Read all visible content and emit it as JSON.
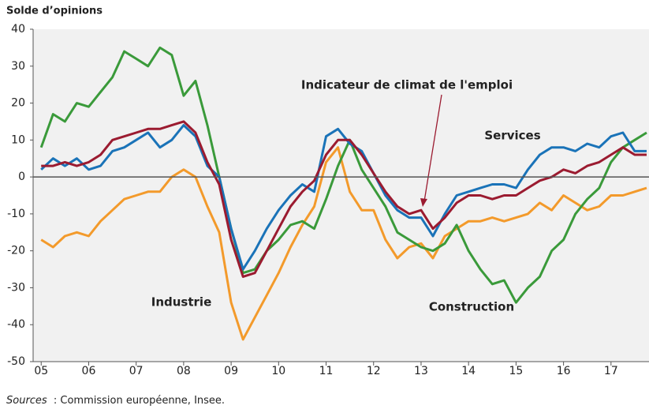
{
  "chart_data": {
    "type": "line",
    "ylabel": "Solde d’opinions",
    "source_label": "Sources",
    "source_text": ": Commission européenne, Insee.",
    "xlim": [
      2004.83,
      2017.8
    ],
    "ylim": [
      -50,
      40
    ],
    "xticks": [
      {
        "value": 2005,
        "label": "05"
      },
      {
        "value": 2006,
        "label": "06"
      },
      {
        "value": 2007,
        "label": "07"
      },
      {
        "value": 2008,
        "label": "08"
      },
      {
        "value": 2009,
        "label": "09"
      },
      {
        "value": 2010,
        "label": "10"
      },
      {
        "value": 2011,
        "label": "11"
      },
      {
        "value": 2012,
        "label": "12"
      },
      {
        "value": 2013,
        "label": "13"
      },
      {
        "value": 2014,
        "label": "14"
      },
      {
        "value": 2015,
        "label": "15"
      },
      {
        "value": 2016,
        "label": "16"
      },
      {
        "value": 2017,
        "label": "17"
      }
    ],
    "yticks": [
      40,
      30,
      20,
      10,
      0,
      -10,
      -20,
      -30,
      -40,
      -50
    ],
    "x": [
      2005,
      2005.25,
      2005.5,
      2005.75,
      2006,
      2006.25,
      2006.5,
      2006.75,
      2007,
      2007.25,
      2007.5,
      2007.75,
      2008,
      2008.25,
      2008.5,
      2008.75,
      2009,
      2009.25,
      2009.5,
      2009.75,
      2010,
      2010.25,
      2010.5,
      2010.75,
      2011,
      2011.25,
      2011.5,
      2011.75,
      2012,
      2012.25,
      2012.5,
      2012.75,
      2013,
      2013.25,
      2013.5,
      2013.75,
      2014,
      2014.25,
      2014.5,
      2014.75,
      2015,
      2015.25,
      2015.5,
      2015.75,
      2016,
      2016.25,
      2016.5,
      2016.75,
      2017,
      2017.25,
      2017.5,
      2017.75
    ],
    "series": [
      {
        "name": "Industrie",
        "color": "#f39a2b",
        "values": [
          -17,
          -19,
          -16,
          -15,
          -16,
          -12,
          -9,
          -6,
          -5,
          -4,
          -4,
          0,
          2,
          0,
          -8,
          -15,
          -34,
          -44,
          -38,
          -32,
          -26,
          -19,
          -13,
          -8,
          4,
          8,
          -4,
          -9,
          -9,
          -17,
          -22,
          -19,
          -18,
          -22,
          -16,
          -14,
          -12,
          -12,
          -11,
          -12,
          -11,
          -10,
          -7,
          -9,
          -5,
          -7,
          -9,
          -8,
          -5,
          -5,
          -4,
          -3
        ]
      },
      {
        "name": "Construction",
        "color": "#3a9a3a",
        "values": [
          8,
          17,
          15,
          20,
          19,
          23,
          27,
          34,
          32,
          30,
          35,
          33,
          22,
          26,
          14,
          0,
          -14,
          -26,
          -25,
          -20,
          -17,
          -13,
          -12,
          -14,
          -6,
          3,
          10,
          2,
          -3,
          -8,
          -15,
          -17,
          -19,
          -20,
          -18,
          -13,
          -20,
          -25,
          -29,
          -28,
          -34,
          -30,
          -27,
          -20,
          -17,
          -10,
          -6,
          -3,
          4,
          8,
          10,
          12
        ]
      },
      {
        "name": "Services",
        "color": "#1a73b8",
        "values": [
          2,
          5,
          3,
          5,
          2,
          3,
          7,
          8,
          10,
          12,
          8,
          10,
          14,
          11,
          3,
          0,
          -14,
          -25,
          -20,
          -14,
          -9,
          -5,
          -2,
          -4,
          11,
          13,
          9,
          7,
          1,
          -5,
          -9,
          -11,
          -11,
          -16,
          -10,
          -5,
          -4,
          -3,
          -2,
          -2,
          -3,
          2,
          6,
          8,
          8,
          7,
          9,
          8,
          11,
          12,
          7,
          7
        ]
      },
      {
        "name": "Indicateur de climat de l'emploi",
        "color": "#9b1b30",
        "values": [
          3,
          3,
          4,
          3,
          4,
          6,
          10,
          11,
          12,
          13,
          13,
          14,
          15,
          12,
          4,
          -2,
          -17,
          -27,
          -26,
          -20,
          -14,
          -8,
          -4,
          -1,
          6,
          10,
          10,
          6,
          1,
          -4,
          -8,
          -10,
          -9,
          -14,
          -11,
          -7,
          -5,
          -5,
          -6,
          -5,
          -5,
          -3,
          -1,
          0,
          2,
          1,
          3,
          4,
          6,
          8,
          6,
          6
        ]
      }
    ]
  }
}
